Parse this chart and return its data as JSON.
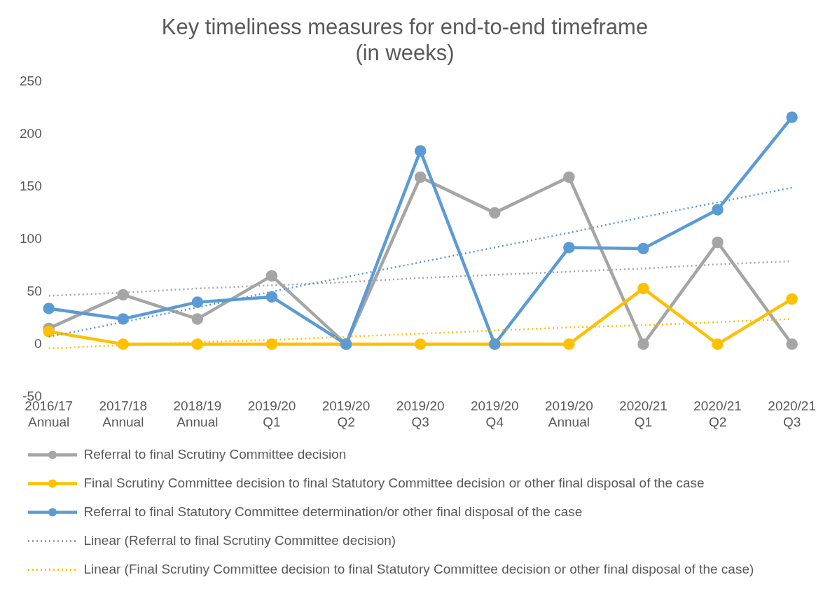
{
  "chart_data": {
    "type": "line",
    "title": [
      "Key timeliness measures for end-to-end timeframe",
      "(in weeks)"
    ],
    "categories": [
      "2016/17\nAnnual",
      "2017/18\nAnnual",
      "2018/19\nAnnual",
      "2019/20\nQ1",
      "2019/20\nQ2",
      "2019/20\nQ3",
      "2019/20\nQ4",
      "2019/20\nAnnual",
      "2020/21\nQ1",
      "2020/21\nQ2",
      "2020/21\nQ3"
    ],
    "series": [
      {
        "name": "Referral to final Scrutiny Committee decision",
        "color": "#a5a5a5",
        "values": [
          15,
          47,
          24,
          65,
          0,
          159,
          125,
          159,
          0,
          97,
          0
        ]
      },
      {
        "name": "Final Scrutiny Committee decision to final Statutory Committee decision or other final disposal of the case",
        "color": "#ffc000",
        "values": [
          12,
          0,
          0,
          0,
          0,
          0,
          0,
          0,
          53,
          0,
          43
        ]
      },
      {
        "name": "Referral to final Statutory Committee determination/or other final disposal of the case",
        "color": "#5b9bd5",
        "values": [
          34,
          24,
          40,
          45,
          0,
          184,
          0,
          92,
          91,
          128,
          216
        ]
      },
      {
        "name": "Linear (Referral to final Scrutiny Committee decision)",
        "color": "#a5a5a5",
        "line_style": "dotted",
        "marker": "none",
        "values": [
          46,
          49,
          53,
          56,
          59,
          63,
          66,
          69,
          72,
          76,
          79
        ]
      },
      {
        "name": "Linear (Final Scrutiny Committee decision to final Statutory Committee decision or other final disposal of the case)",
        "color": "#ffc000",
        "line_style": "dotted",
        "marker": "none",
        "values": [
          -4,
          -1,
          2,
          4,
          7,
          10,
          13,
          16,
          18,
          21,
          24
        ]
      },
      {
        "color": "#5b9bd5",
        "line_style": "dotted",
        "marker": "none",
        "values": [
          7,
          21,
          35,
          50,
          64,
          78,
          92,
          106,
          121,
          135,
          149
        ]
      }
    ],
    "ylim": [
      -50,
      250
    ],
    "yticks": [
      -50,
      0,
      50,
      100,
      150,
      200,
      250
    ],
    "grid": false,
    "legend": "bottom",
    "marker": "circle",
    "line_style": "solid"
  }
}
